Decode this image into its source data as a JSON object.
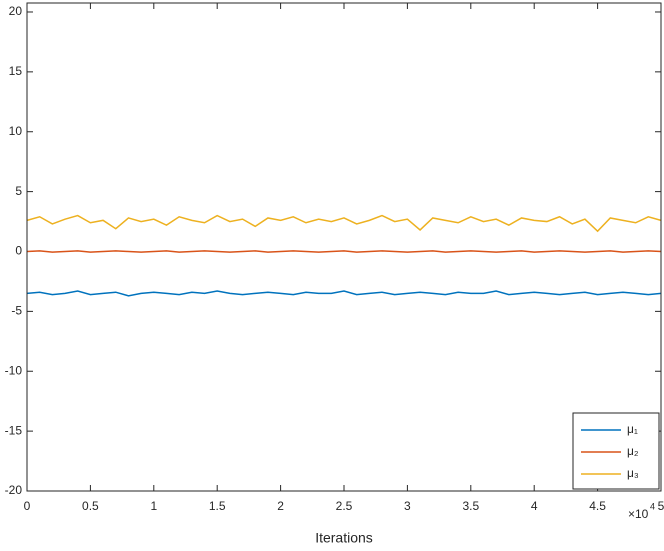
{
  "chart_data": {
    "type": "line",
    "x_label": "Iterations",
    "x_multiplier": {
      "base": "×10",
      "exponent": "4"
    },
    "x": [
      0,
      1000,
      2000,
      3000,
      4000,
      5000,
      6000,
      7000,
      8000,
      9000,
      10000,
      11000,
      12000,
      13000,
      14000,
      15000,
      16000,
      17000,
      18000,
      19000,
      20000,
      21000,
      22000,
      23000,
      24000,
      25000,
      26000,
      27000,
      28000,
      29000,
      30000,
      31000,
      32000,
      33000,
      34000,
      35000,
      36000,
      37000,
      38000,
      39000,
      40000,
      41000,
      42000,
      43000,
      44000,
      45000,
      46000,
      47000,
      48000,
      49000,
      50000
    ],
    "series": [
      {
        "name": "μ₁",
        "color": "#0072bd",
        "values": [
          -3.5,
          -3.4,
          -3.6,
          -3.5,
          -3.3,
          -3.6,
          -3.5,
          -3.4,
          -3.7,
          -3.5,
          -3.4,
          -3.5,
          -3.6,
          -3.4,
          -3.5,
          -3.3,
          -3.5,
          -3.6,
          -3.5,
          -3.4,
          -3.5,
          -3.6,
          -3.4,
          -3.5,
          -3.5,
          -3.3,
          -3.6,
          -3.5,
          -3.4,
          -3.6,
          -3.5,
          -3.4,
          -3.5,
          -3.6,
          -3.4,
          -3.5,
          -3.5,
          -3.3,
          -3.6,
          -3.5,
          -3.4,
          -3.5,
          -3.6,
          -3.5,
          -3.4,
          -3.6,
          -3.5,
          -3.4,
          -3.5,
          -3.6,
          -3.5
        ]
      },
      {
        "name": "μ₂",
        "color": "#d95319",
        "values": [
          0,
          0.05,
          -0.05,
          0,
          0.05,
          -0.05,
          0,
          0.05,
          0,
          -0.05,
          0,
          0.05,
          -0.05,
          0,
          0.05,
          0,
          -0.05,
          0,
          0.05,
          -0.05,
          0,
          0.05,
          0,
          -0.05,
          0,
          0.05,
          -0.05,
          0,
          0.05,
          0,
          -0.05,
          0,
          0.05,
          -0.05,
          0,
          0.05,
          0,
          -0.05,
          0,
          0.05,
          -0.05,
          0,
          0.05,
          0,
          -0.05,
          0,
          0.05,
          -0.05,
          0,
          0.05,
          0
        ]
      },
      {
        "name": "μ₃",
        "color": "#edb120",
        "values": [
          2.6,
          2.9,
          2.3,
          2.7,
          3.0,
          2.4,
          2.6,
          1.9,
          2.8,
          2.5,
          2.7,
          2.2,
          2.9,
          2.6,
          2.4,
          3.0,
          2.5,
          2.7,
          2.1,
          2.8,
          2.6,
          2.9,
          2.4,
          2.7,
          2.5,
          2.8,
          2.3,
          2.6,
          3.0,
          2.5,
          2.7,
          1.8,
          2.8,
          2.6,
          2.4,
          2.9,
          2.5,
          2.7,
          2.2,
          2.8,
          2.6,
          2.5,
          2.9,
          2.3,
          2.7,
          1.7,
          2.8,
          2.6,
          2.4,
          2.9,
          2.6
        ]
      }
    ],
    "xlim": [
      0,
      50000
    ],
    "xticks": [
      0,
      {
        "value": 5000,
        "label": "0.5"
      },
      {
        "value": 10000,
        "label": "1"
      },
      {
        "value": 15000,
        "label": "1.5"
      },
      {
        "value": 20000,
        "label": "2"
      },
      {
        "value": 25000,
        "label": "2.5"
      },
      {
        "value": 30000,
        "label": "3"
      },
      {
        "value": 35000,
        "label": "3.5"
      },
      {
        "value": 40000,
        "label": "4"
      },
      {
        "value": 45000,
        "label": "4.5"
      },
      {
        "value": 50000,
        "label": "5"
      }
    ],
    "ylim": [
      -20,
      20.75
    ],
    "yticks": [
      -20,
      -15,
      -10,
      -5,
      0,
      5,
      10,
      15,
      20
    ],
    "legend": "lower right"
  }
}
